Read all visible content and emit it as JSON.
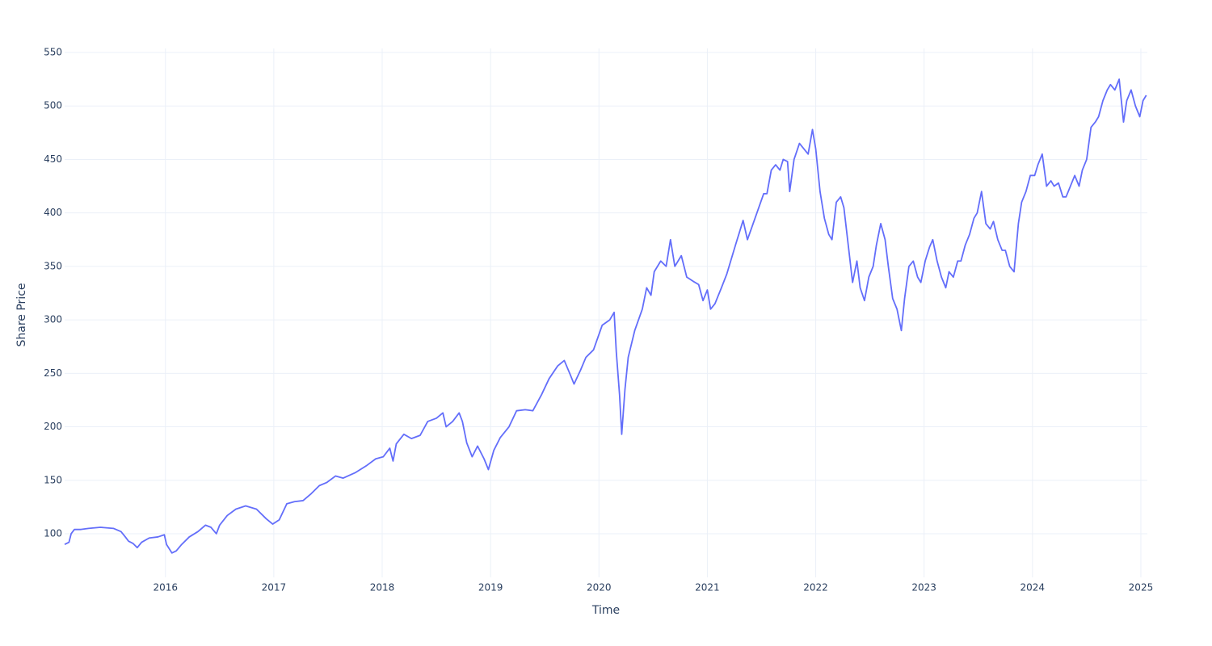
{
  "chart_data": {
    "type": "line",
    "x_label": "Time",
    "y_label": "Share Price",
    "color": "#636efa",
    "grid": true,
    "xlim": [
      2015.07,
      2025.06
    ],
    "ylim": [
      59.2,
      553.8
    ],
    "xticks": [
      2016,
      2017,
      2018,
      2019,
      2020,
      2021,
      2022,
      2023,
      2024,
      2025
    ],
    "yticks": [
      100,
      150,
      200,
      250,
      300,
      350,
      400,
      450,
      500,
      550
    ],
    "x": [
      2015.07,
      2015.11,
      2015.13,
      2015.16,
      2015.22,
      2015.29,
      2015.4,
      2015.52,
      2015.59,
      2015.63,
      2015.66,
      2015.7,
      2015.74,
      2015.78,
      2015.85,
      2015.93,
      2015.99,
      2016.01,
      2016.06,
      2016.1,
      2016.15,
      2016.22,
      2016.3,
      2016.37,
      2016.42,
      2016.47,
      2016.5,
      2016.57,
      2016.65,
      2016.74,
      2016.84,
      2016.93,
      2016.99,
      2017.05,
      2017.12,
      2017.19,
      2017.27,
      2017.34,
      2017.42,
      2017.49,
      2017.57,
      2017.64,
      2017.75,
      2017.86,
      2017.94,
      2018.01,
      2018.07,
      2018.1,
      2018.13,
      2018.2,
      2018.27,
      2018.35,
      2018.42,
      2018.5,
      2018.56,
      2018.59,
      2018.65,
      2018.71,
      2018.74,
      2018.78,
      2018.83,
      2018.88,
      2018.94,
      2018.98,
      2019.03,
      2019.09,
      2019.17,
      2019.24,
      2019.32,
      2019.39,
      2019.47,
      2019.54,
      2019.62,
      2019.68,
      2019.73,
      2019.77,
      2019.83,
      2019.88,
      2019.95,
      2020.03,
      2020.1,
      2020.14,
      2020.16,
      2020.19,
      2020.21,
      2020.24,
      2020.27,
      2020.33,
      2020.4,
      2020.44,
      2020.48,
      2020.51,
      2020.57,
      2020.62,
      2020.66,
      2020.7,
      2020.76,
      2020.81,
      2020.87,
      2020.92,
      2020.96,
      2021.0,
      2021.03,
      2021.07,
      2021.13,
      2021.18,
      2021.26,
      2021.33,
      2021.37,
      2021.44,
      2021.52,
      2021.55,
      2021.59,
      2021.63,
      2021.67,
      2021.7,
      2021.74,
      2021.76,
      2021.8,
      2021.85,
      2021.89,
      2021.93,
      2021.97,
      2022.0,
      2022.04,
      2022.08,
      2022.12,
      2022.15,
      2022.19,
      2022.23,
      2022.26,
      2022.3,
      2022.34,
      2022.38,
      2022.41,
      2022.45,
      2022.49,
      2022.53,
      2022.56,
      2022.6,
      2022.64,
      2022.67,
      2022.71,
      2022.75,
      2022.79,
      2022.82,
      2022.86,
      2022.9,
      2022.94,
      2022.97,
      2023.01,
      2023.05,
      2023.08,
      2023.12,
      2023.16,
      2023.2,
      2023.23,
      2023.27,
      2023.31,
      2023.34,
      2023.38,
      2023.42,
      2023.46,
      2023.49,
      2023.53,
      2023.57,
      2023.61,
      2023.64,
      2023.68,
      2023.72,
      2023.75,
      2023.79,
      2023.83,
      2023.87,
      2023.9,
      2023.94,
      2023.98,
      2024.02,
      2024.05,
      2024.09,
      2024.13,
      2024.17,
      2024.2,
      2024.24,
      2024.28,
      2024.31,
      2024.35,
      2024.39,
      2024.43,
      2024.46,
      2024.5,
      2024.54,
      2024.58,
      2024.61,
      2024.65,
      2024.69,
      2024.72,
      2024.76,
      2024.8,
      2024.84,
      2024.87,
      2024.91,
      2024.95,
      2024.99,
      2025.02,
      2025.05
    ],
    "values": [
      90,
      92,
      100,
      104,
      104,
      105,
      106,
      105,
      102,
      97,
      93,
      91,
      87,
      92,
      96,
      97,
      99,
      90,
      82,
      84,
      90,
      97,
      102,
      108,
      106,
      100,
      108,
      117,
      123,
      126,
      123,
      114,
      109,
      113,
      128,
      130,
      131,
      137,
      145,
      148,
      154,
      152,
      157,
      164,
      170,
      172,
      180,
      168,
      184,
      193,
      189,
      192,
      205,
      208,
      213,
      200,
      205,
      213,
      205,
      185,
      172,
      182,
      170,
      160,
      178,
      190,
      200,
      215,
      216,
      215,
      230,
      245,
      257,
      262,
      250,
      240,
      253,
      265,
      272,
      295,
      300,
      307,
      270,
      230,
      193,
      235,
      265,
      290,
      310,
      330,
      323,
      345,
      355,
      350,
      375,
      350,
      360,
      340,
      336,
      333,
      318,
      328,
      310,
      315,
      330,
      343,
      370,
      393,
      375,
      395,
      418,
      418,
      440,
      445,
      440,
      450,
      448,
      420,
      450,
      465,
      460,
      455,
      478,
      460,
      420,
      395,
      380,
      375,
      410,
      415,
      405,
      370,
      335,
      355,
      330,
      318,
      340,
      350,
      370,
      390,
      375,
      350,
      320,
      310,
      290,
      320,
      350,
      355,
      340,
      335,
      355,
      368,
      375,
      355,
      340,
      330,
      345,
      340,
      355,
      355,
      370,
      380,
      395,
      400,
      420,
      390,
      385,
      392,
      375,
      365,
      365,
      350,
      345,
      390,
      410,
      420,
      435,
      435,
      445,
      455,
      425,
      430,
      425,
      428,
      415,
      415,
      425,
      435,
      425,
      440,
      450,
      480,
      485,
      490,
      505,
      515,
      520,
      515,
      525,
      485,
      505,
      515,
      500,
      490,
      505,
      510
    ]
  }
}
